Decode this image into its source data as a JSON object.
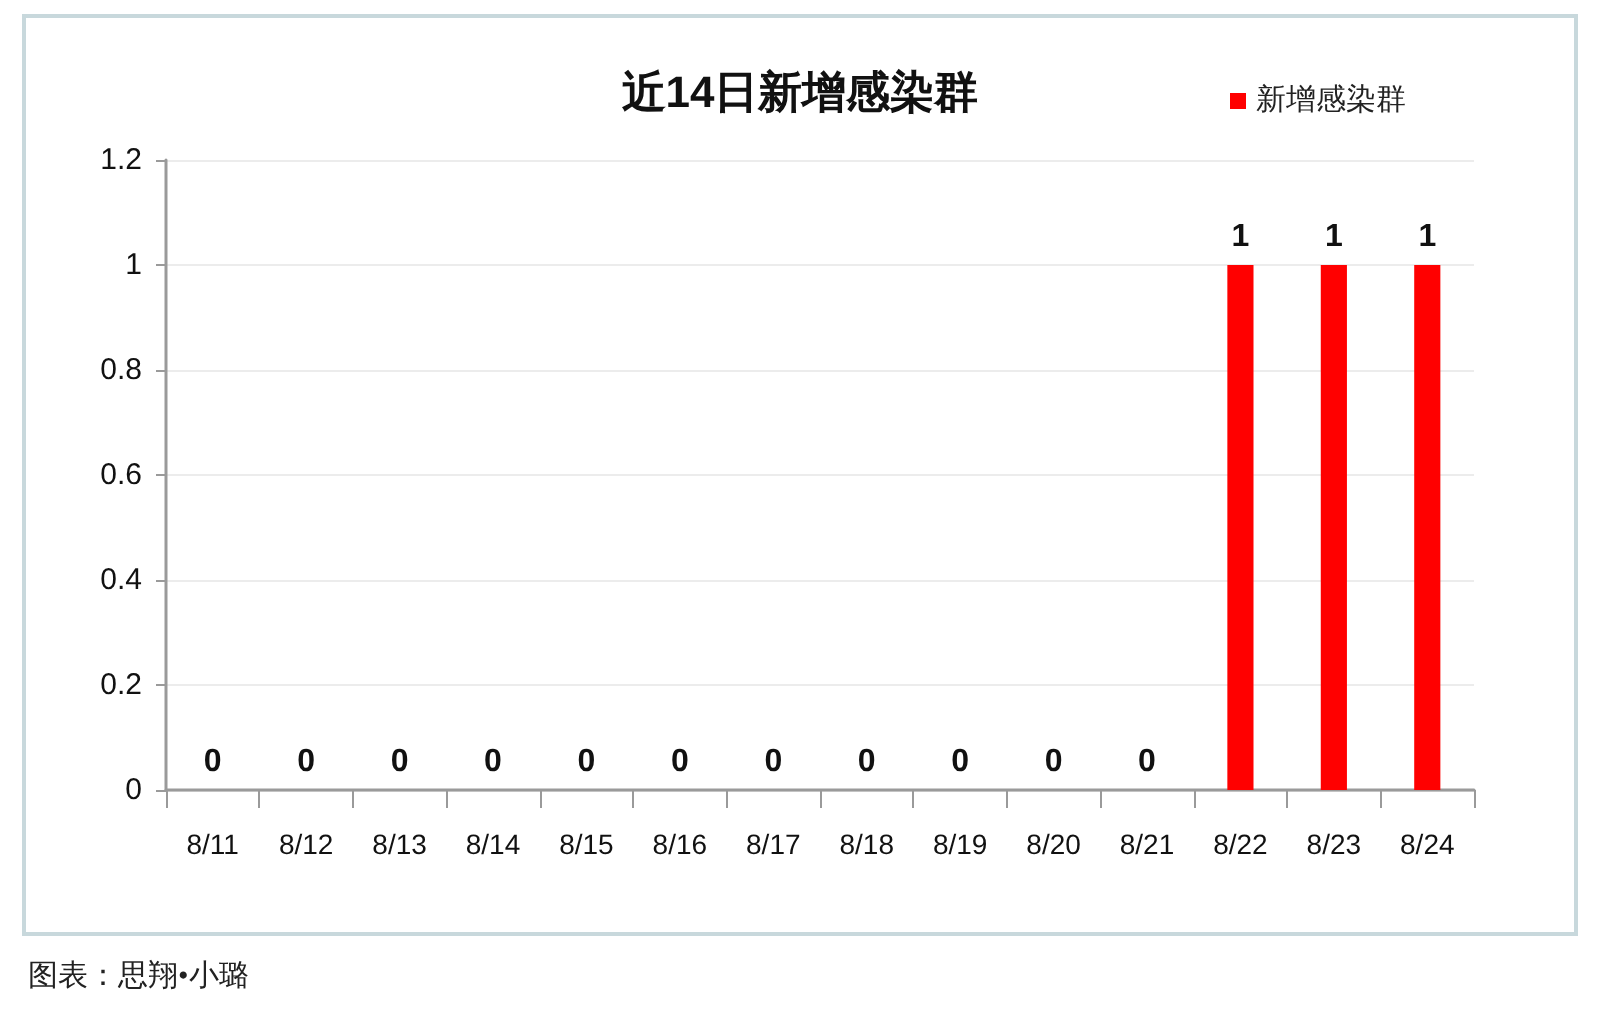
{
  "chart_data": {
    "type": "bar",
    "title": "近14日新增感染群",
    "categories": [
      "8/11",
      "8/12",
      "8/13",
      "8/14",
      "8/15",
      "8/16",
      "8/17",
      "8/18",
      "8/19",
      "8/20",
      "8/21",
      "8/22",
      "8/23",
      "8/24"
    ],
    "series": [
      {
        "name": "新增感染群",
        "color": "#ff0000",
        "values": [
          0,
          0,
          0,
          0,
          0,
          0,
          0,
          0,
          0,
          0,
          0,
          1,
          1,
          1
        ]
      }
    ],
    "ylim": [
      0,
      1.2
    ],
    "yticks": [
      0,
      0.2,
      0.4,
      0.6,
      0.8,
      1,
      1.2
    ],
    "grid": "y",
    "legend": "top right",
    "data_labels": true,
    "annotations": [
      "图表：思翔•小璐"
    ]
  }
}
